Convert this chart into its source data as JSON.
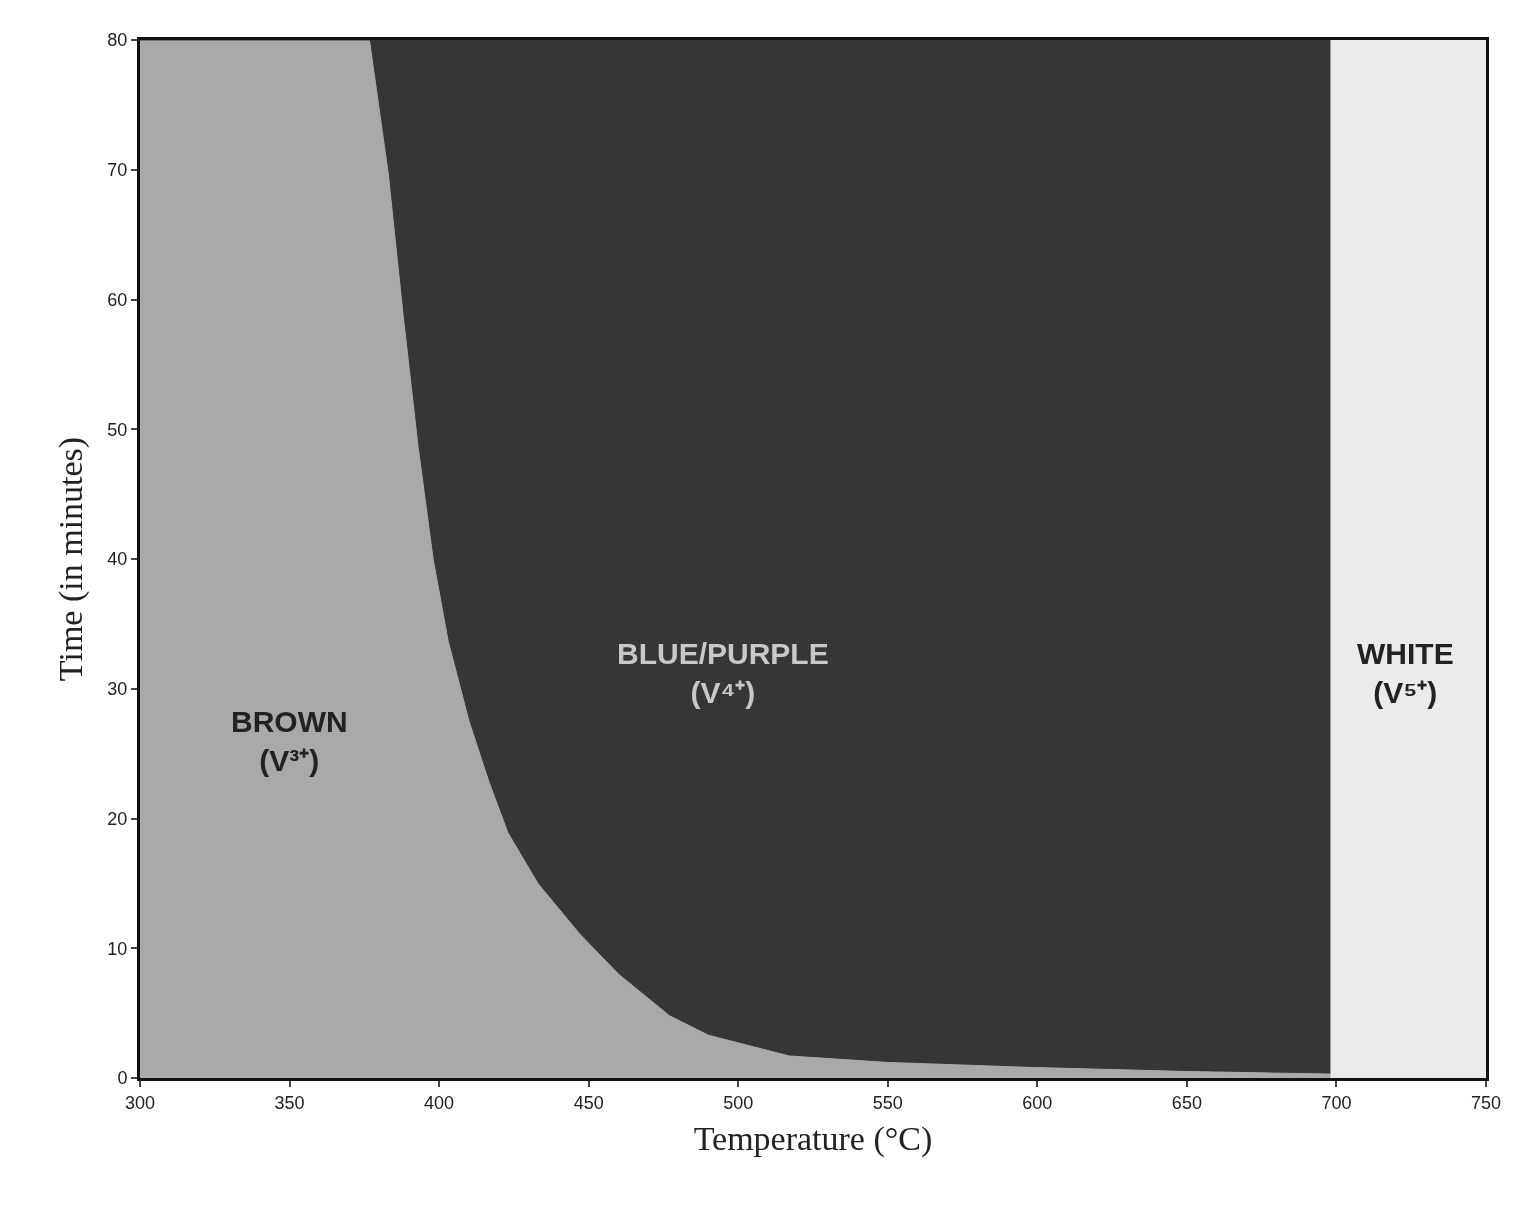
{
  "chart_data": {
    "type": "area",
    "stacked": true,
    "xlabel": "Temperature (°C)",
    "ylabel": "Time (in minutes)",
    "x": [
      300,
      376.7,
      383,
      388,
      393,
      398,
      403,
      410,
      416.7,
      423,
      433,
      447,
      460,
      477,
      490,
      517,
      550,
      600,
      650,
      698
    ],
    "series": [
      {
        "color": "#a9a9a9",
        "values": [
          80,
          80,
          69.7,
          58.7,
          48.6,
          40,
          33.7,
          27.5,
          22.8,
          18.9,
          15,
          11.1,
          8,
          4.8,
          3.3,
          1.7,
          1.2,
          0.8,
          0.5,
          0.3
        ]
      },
      {
        "color": "#363636",
        "values": [
          0,
          0,
          10.3,
          21.3,
          31.4,
          40,
          46.3,
          52.5,
          57.2,
          61.1,
          65,
          68.9,
          72,
          75.2,
          76.7,
          78.3,
          78.8,
          79.2,
          79.5,
          79.7
        ]
      }
    ],
    "bands": [
      {
        "axis": "x",
        "from": 698,
        "to": 750,
        "color": "#ebebeb"
      }
    ],
    "annotations": [
      "BROWN\n(V³⁺)",
      "BLUE/PURPLE\n(V⁴⁺)",
      "WHITE\n(V⁵⁺)"
    ],
    "xlim": [
      300,
      750
    ],
    "xticks": [
      300,
      350,
      400,
      450,
      500,
      550,
      600,
      650,
      700,
      750
    ],
    "ylim": [
      0,
      80
    ],
    "yticks": [
      0,
      10,
      20,
      30,
      40,
      50,
      60,
      70,
      80
    ],
    "grid": false
  }
}
